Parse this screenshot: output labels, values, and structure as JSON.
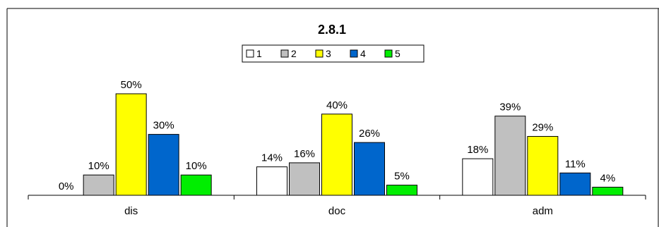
{
  "chart_data": {
    "type": "bar",
    "title": "2.8.1",
    "categories": [
      "dis",
      "doc",
      "adm"
    ],
    "series": [
      {
        "name": "1",
        "color": "#ffffff",
        "values": [
          0,
          14,
          18
        ],
        "labels": [
          "0%",
          "14%",
          "18%"
        ]
      },
      {
        "name": "2",
        "color": "#c0c0c0",
        "values": [
          10,
          16,
          39
        ],
        "labels": [
          "10%",
          "16%",
          "39%"
        ]
      },
      {
        "name": "3",
        "color": "#ffff00",
        "values": [
          50,
          40,
          29
        ],
        "labels": [
          "50%",
          "40%",
          "29%"
        ]
      },
      {
        "name": "4",
        "color": "#0066cc",
        "values": [
          30,
          26,
          11
        ],
        "labels": [
          "30%",
          "26%",
          "11%"
        ]
      },
      {
        "name": "5",
        "color": "#00ee00",
        "values": [
          10,
          5,
          4
        ],
        "labels": [
          "10%",
          "5%",
          "4%"
        ]
      }
    ],
    "ylim": [
      0,
      50
    ],
    "legend": "top-center",
    "grid": false
  }
}
